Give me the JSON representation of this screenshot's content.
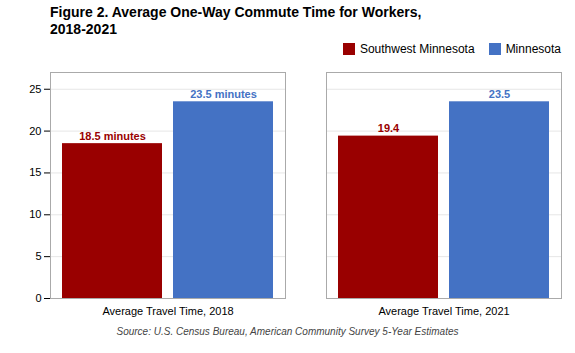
{
  "chart_data": {
    "type": "bar",
    "title": "Figure 2. Average One-Way Commute Time for Workers,\n2018-2021",
    "categories": [
      "Average Travel Time, 2018",
      "Average Travel Time, 2021"
    ],
    "series": [
      {
        "name": "Southwest Minnesota",
        "color": "#990000",
        "values": [
          18.5,
          19.4
        ],
        "value_labels": [
          "18.5 minutes",
          "19.4"
        ]
      },
      {
        "name": "Minnesota",
        "color": "#4472C4",
        "values": [
          23.5,
          23.5
        ],
        "value_labels": [
          "23.5 minutes",
          "23.5"
        ]
      }
    ],
    "ylim": [
      0,
      27
    ],
    "yticks": [
      0,
      5,
      10,
      15,
      20,
      25
    ],
    "grid": true,
    "legend": "upper right",
    "data_labels": true,
    "source": "Source: U.S. Census Bureau, American Community Survey 5-Year Estimates"
  }
}
